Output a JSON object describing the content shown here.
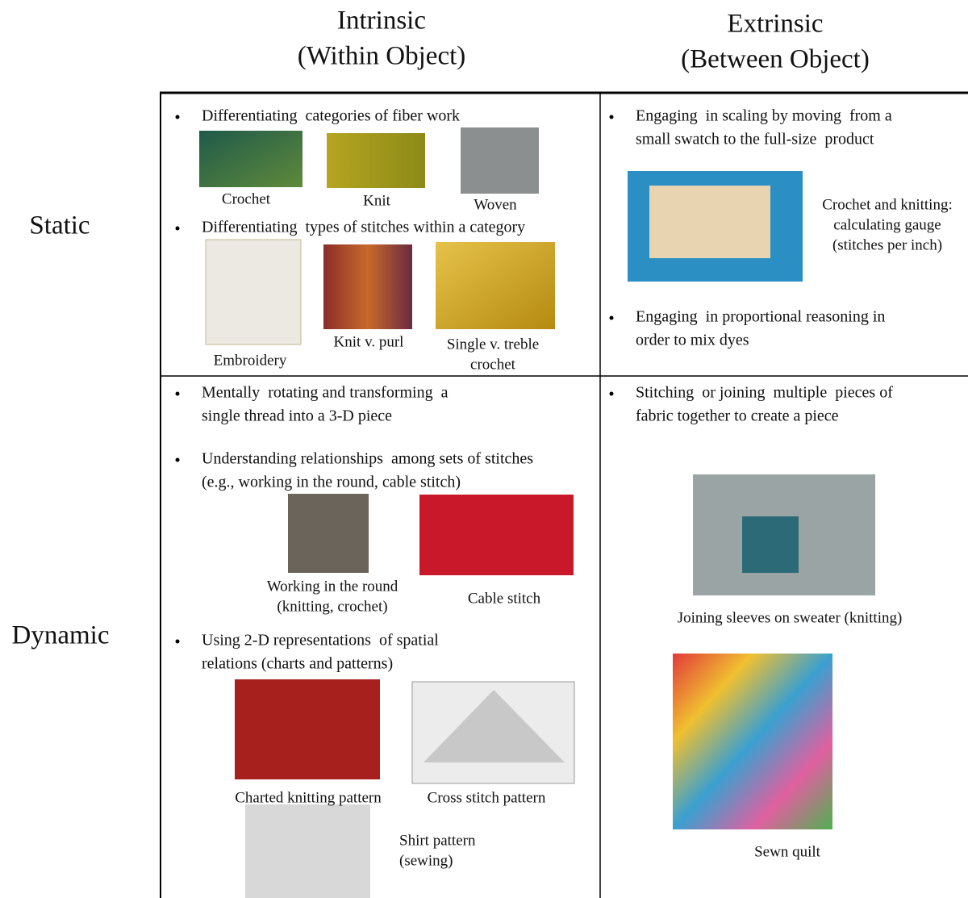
{
  "column_headers": [
    [
      "Intrinsic",
      "(Within Object)"
    ],
    [
      "Extrinsic",
      "(Between Object)"
    ]
  ],
  "row_headers": [
    "Static",
    "Dynamic"
  ],
  "static_intrinsic": {
    "bullets": [
      [
        "Differentiating  categories of fiber work"
      ],
      [
        "Differentiating  types of stitches within a category"
      ]
    ],
    "captions": [
      [
        "Crochet"
      ],
      [
        "Knit"
      ],
      [
        "Woven"
      ],
      [
        "Embroidery"
      ],
      [
        "Knit v. purl"
      ],
      [
        "Single v. treble",
        "crochet"
      ]
    ]
  },
  "static_extrinsic": {
    "bullets": [
      [
        "Engaging  in scaling by moving  from a",
        "small swatch to the full-size  product"
      ],
      [
        "Engaging  in proportional reasoning in",
        "order to mix dyes"
      ]
    ],
    "captions": [
      [
        "Crochet and knitting:",
        "calculating gauge",
        "(stitches per inch)"
      ]
    ]
  },
  "dynamic_intrinsic": {
    "bullets": [
      [
        "Mentally  rotating and transforming  a",
        "single thread into a 3-D piece"
      ],
      [
        "Understanding relationships  among sets of stitches",
        "(e.g., working in the round, cable stitch)"
      ],
      [
        "Using 2-D representations  of spatial",
        "relations (charts and patterns)"
      ]
    ],
    "captions": [
      [
        "Working in the round",
        "(knitting, crochet)"
      ],
      [
        "Cable stitch"
      ],
      [
        "Charted knitting pattern"
      ],
      [
        "Cross stitch pattern"
      ],
      [
        "Shirt pattern",
        "(sewing)"
      ]
    ]
  },
  "dynamic_extrinsic": {
    "bullets": [
      [
        "Stitching  or joining  multiple  pieces of",
        "fabric together to create a piece"
      ]
    ],
    "captions": [
      [
        "Joining sleeves on sweater (knitting)"
      ],
      [
        "Sewn quilt"
      ]
    ]
  }
}
